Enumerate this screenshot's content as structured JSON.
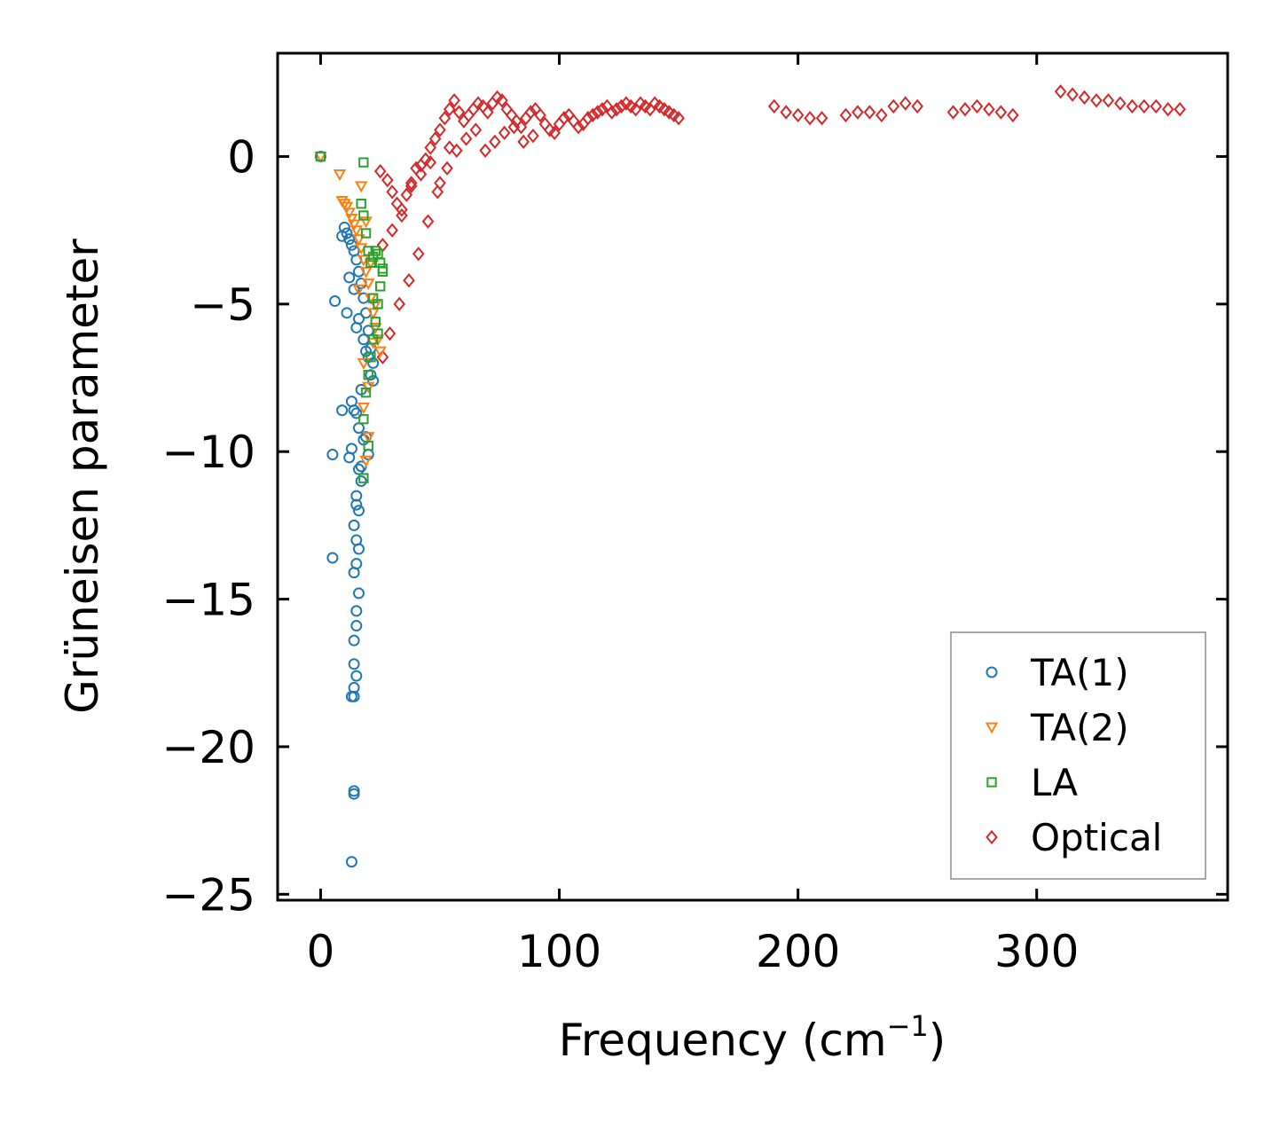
{
  "chart_data": {
    "type": "scatter",
    "title": "",
    "xlabel": "Frequency (cm",
    "xlabel_superscript": "−1",
    "xlabel_suffix": ")",
    "ylabel": "Grüneisen parameter",
    "xlim": [
      -18,
      380
    ],
    "ylim": [
      -25.2,
      3.5
    ],
    "xticks": [
      0,
      100,
      200,
      300
    ],
    "xtick_labels": [
      "0",
      "100",
      "200",
      "300"
    ],
    "yticks": [
      0,
      -5,
      -10,
      -15,
      -20,
      -25
    ],
    "ytick_labels": [
      "0",
      "−5",
      "−10",
      "−15",
      "−20",
      "−25"
    ],
    "grid": false,
    "legend_position": "bottom-right",
    "series": [
      {
        "name": "TA(1)",
        "marker": "circle",
        "color": "#1f77b4",
        "x": [
          0,
          10,
          11,
          12,
          13,
          14,
          15,
          16,
          17,
          18,
          19,
          20,
          21,
          22,
          9,
          12,
          14,
          16,
          18,
          20,
          22,
          6,
          11,
          15,
          19,
          21,
          17,
          13,
          15,
          16,
          18,
          20,
          16,
          17,
          15,
          16,
          14,
          15,
          16,
          15,
          14,
          16,
          15,
          15,
          14,
          14,
          15,
          14,
          14,
          13,
          14,
          14,
          14,
          13,
          5,
          9,
          5,
          12,
          15,
          17,
          19,
          13
        ],
        "y": [
          0,
          -2.4,
          -2.6,
          -2.8,
          -3.0,
          -3.2,
          -3.5,
          -3.9,
          -4.3,
          -4.8,
          -5.3,
          -5.9,
          -6.5,
          -7.0,
          -2.7,
          -4.1,
          -4.5,
          -5.5,
          -6.2,
          -6.8,
          -7.6,
          -4.9,
          -5.3,
          -5.8,
          -6.6,
          -7.4,
          -7.9,
          -8.3,
          -8.7,
          -9.2,
          -9.6,
          -10.1,
          -10.6,
          -11.0,
          -11.5,
          -12.0,
          -12.5,
          -13.0,
          -13.3,
          -13.8,
          -14.1,
          -14.8,
          -15.4,
          -15.9,
          -16.4,
          -17.2,
          -17.6,
          -18.0,
          -18.3,
          -18.3,
          -21.5,
          -21.6,
          -8.6,
          -23.9,
          -13.6,
          -8.6,
          -10.1,
          -10.2,
          -11.8,
          -10.5,
          -9.5,
          -9.9
        ]
      },
      {
        "name": "TA(2)",
        "marker": "triangle-down",
        "color": "#ff7f0e",
        "x": [
          0,
          8,
          9,
          10,
          11,
          12,
          13,
          14,
          15,
          16,
          17,
          18,
          19,
          20,
          21,
          22,
          23,
          24,
          25,
          17,
          19,
          21,
          23,
          18,
          20,
          22,
          16,
          18,
          20,
          19
        ],
        "y": [
          0,
          -0.6,
          -1.5,
          -1.6,
          -1.7,
          -1.9,
          -2.1,
          -2.3,
          -2.5,
          -2.8,
          -3.1,
          -3.5,
          -3.9,
          -4.3,
          -4.8,
          -5.3,
          -5.8,
          -6.2,
          -6.6,
          -1.0,
          -2.2,
          -3.6,
          -5.0,
          -7.0,
          -7.8,
          -6.3,
          -4.5,
          -8.5,
          -9.5,
          -10.3
        ]
      },
      {
        "name": "LA",
        "marker": "square",
        "color": "#2ca02c",
        "x": [
          0,
          18,
          17,
          18,
          19,
          20,
          21,
          22,
          23,
          24,
          25,
          26,
          25,
          24,
          23,
          22,
          21,
          20,
          19,
          18,
          22,
          24,
          26,
          20,
          18
        ],
        "y": [
          0,
          -0.2,
          -1.6,
          -2.0,
          -2.6,
          -3.2,
          -3.6,
          -3.4,
          -3.2,
          -3.3,
          -3.6,
          -3.8,
          -4.4,
          -5.0,
          -5.6,
          -6.2,
          -6.8,
          -7.4,
          -8.0,
          -8.9,
          -4.8,
          -6.0,
          -3.9,
          -9.8,
          -10.9
        ]
      },
      {
        "name": "Optical",
        "marker": "diamond",
        "color": "#d62728",
        "x": [
          25,
          28,
          30,
          32,
          34,
          36,
          38,
          40,
          42,
          44,
          46,
          48,
          50,
          52,
          54,
          56,
          58,
          60,
          62,
          64,
          66,
          68,
          70,
          72,
          74,
          76,
          78,
          80,
          82,
          84,
          86,
          88,
          90,
          92,
          94,
          96,
          98,
          100,
          102,
          104,
          106,
          108,
          110,
          112,
          114,
          116,
          118,
          120,
          122,
          124,
          126,
          128,
          130,
          132,
          134,
          136,
          138,
          140,
          142,
          144,
          146,
          148,
          150,
          190,
          195,
          200,
          205,
          210,
          220,
          225,
          230,
          235,
          240,
          245,
          250,
          265,
          270,
          275,
          280,
          285,
          290,
          310,
          315,
          320,
          325,
          330,
          335,
          340,
          345,
          350,
          355,
          360,
          26,
          29,
          33,
          37,
          41,
          45,
          49,
          53,
          57,
          61,
          65,
          69,
          73,
          77,
          81,
          85,
          89,
          26,
          30,
          34,
          38,
          42,
          46,
          50,
          54
        ],
        "y": [
          -0.5,
          -0.8,
          -1.2,
          -1.6,
          -2.0,
          -1.3,
          -0.9,
          -0.4,
          -0.3,
          -0.1,
          0.3,
          0.6,
          0.9,
          1.3,
          1.6,
          1.9,
          1.5,
          1.2,
          1.4,
          1.6,
          1.8,
          1.7,
          1.5,
          1.8,
          2.0,
          1.9,
          1.6,
          1.4,
          1.2,
          1.0,
          1.3,
          1.5,
          1.6,
          1.4,
          1.1,
          0.9,
          0.8,
          1.1,
          1.3,
          1.4,
          1.2,
          1.0,
          1.1,
          1.3,
          1.4,
          1.5,
          1.6,
          1.7,
          1.5,
          1.6,
          1.7,
          1.8,
          1.7,
          1.6,
          1.8,
          1.7,
          1.6,
          1.8,
          1.7,
          1.6,
          1.5,
          1.4,
          1.3,
          1.7,
          1.5,
          1.4,
          1.3,
          1.3,
          1.4,
          1.5,
          1.5,
          1.4,
          1.7,
          1.8,
          1.7,
          1.5,
          1.6,
          1.7,
          1.6,
          1.5,
          1.4,
          2.2,
          2.1,
          2.0,
          1.9,
          1.9,
          1.8,
          1.7,
          1.7,
          1.7,
          1.6,
          1.6,
          -6.8,
          -6.0,
          -5.0,
          -4.2,
          -3.3,
          -2.2,
          -1.2,
          -0.4,
          0.2,
          0.6,
          0.9,
          0.2,
          0.5,
          0.8,
          1.0,
          0.5,
          0.7,
          -3.0,
          -2.5,
          -1.8,
          -1.0,
          -0.6,
          -0.2,
          -0.9,
          0.3
        ]
      }
    ]
  }
}
